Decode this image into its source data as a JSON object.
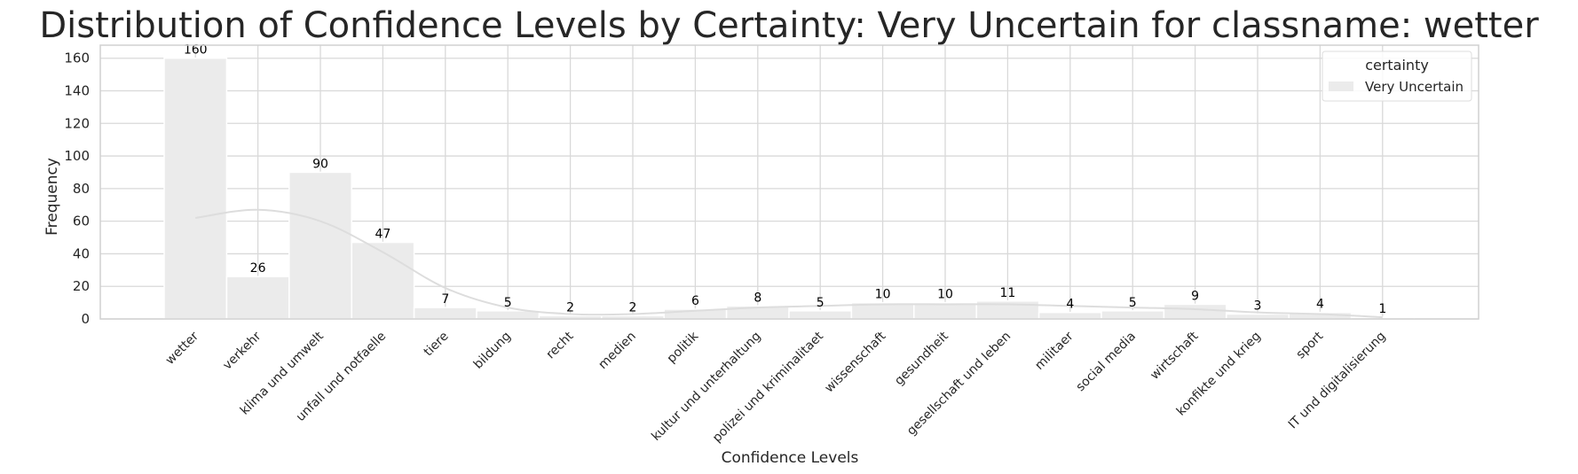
{
  "chart_data": {
    "type": "bar",
    "title": "Distribution of Confidence Levels by Certainty: Very Uncertain for classname: wetter",
    "xlabel": "Confidence Levels",
    "ylabel": "Frequency",
    "ylim": [
      0,
      168
    ],
    "yticks": [
      0,
      20,
      40,
      60,
      80,
      100,
      120,
      140,
      160
    ],
    "grid": true,
    "legend": {
      "title": "certainty",
      "position": "top-right",
      "entries": [
        "Very Uncertain"
      ]
    },
    "categories": [
      "wetter",
      "verkehr",
      "klima und umwelt",
      "unfall und notfaelle",
      "tiere",
      "bildung",
      "recht",
      "medien",
      "politik",
      "kultur und unterhaltung",
      "polizei und kriminalitaet",
      "wissenschaft",
      "gesundheit",
      "gesellschaft und leben",
      "militaer",
      "social media",
      "wirtschaft",
      "konfikte und krieg",
      "sport",
      "IT und digitalisierung"
    ],
    "series": [
      {
        "name": "Very Uncertain",
        "values": [
          160,
          26,
          90,
          47,
          7,
          5,
          2,
          2,
          6,
          8,
          5,
          10,
          10,
          11,
          4,
          5,
          9,
          3,
          4,
          1
        ]
      }
    ],
    "kde": [
      62,
      67,
      60,
      41,
      19,
      7,
      3,
      3,
      5,
      7,
      8,
      9,
      9,
      9,
      8,
      7,
      6,
      4,
      3,
      1
    ],
    "colors": {
      "bar": "#ebebeb",
      "bar_edge": "#ffffff",
      "kde": "#dddddd",
      "grid": "#d9d9d9",
      "frame": "#d0d0d0"
    }
  }
}
